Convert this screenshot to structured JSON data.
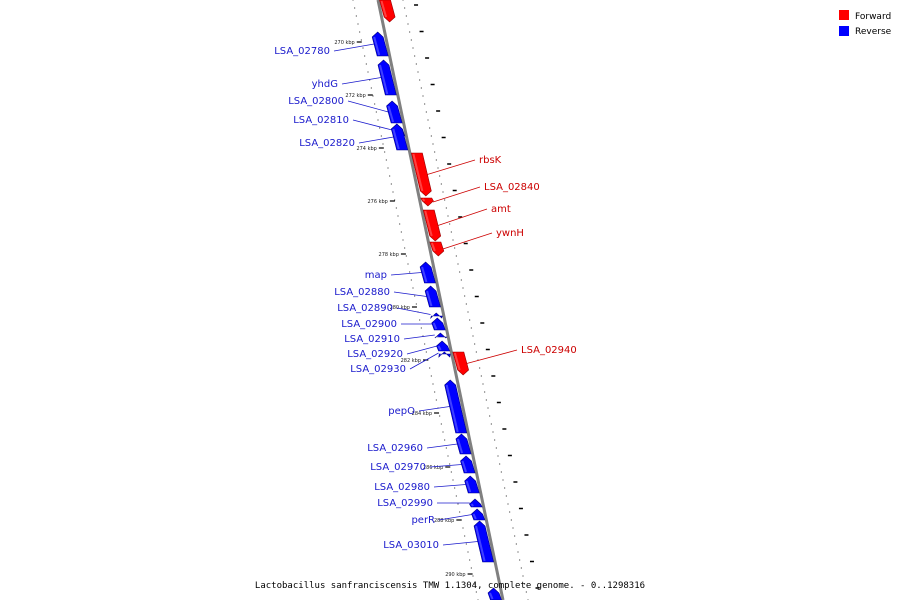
{
  "caption": "Lactobacillus sanfranciscensis TMW 1.1304, complete genome. - 0..1298316",
  "colors": {
    "forward": "#ff0000",
    "reverse": "#0000ff",
    "backbone": "#808080",
    "line_forward": "#cc0000",
    "line_reverse": "#1a1acc"
  },
  "legend": [
    {
      "label": "Forward",
      "color": "#ff0000"
    },
    {
      "label": "Reverse",
      "color": "#0000ff"
    }
  ],
  "ticks": [
    "270 kbp",
    "272 kbp",
    "274 kbp",
    "276 kbp",
    "278 kbp",
    "280 kbp",
    "282 kbp",
    "284 kbp",
    "286 kbp",
    "288 kbp",
    "290 kbp"
  ],
  "genes": [
    {
      "name": "LSA_02780",
      "strand": "reverse"
    },
    {
      "name": "yhdG",
      "strand": "reverse"
    },
    {
      "name": "LSA_02800",
      "strand": "reverse"
    },
    {
      "name": "LSA_02810",
      "strand": "reverse"
    },
    {
      "name": "LSA_02820",
      "strand": "reverse"
    },
    {
      "name": "rbsK",
      "strand": "forward"
    },
    {
      "name": "LSA_02840",
      "strand": "forward"
    },
    {
      "name": "amt",
      "strand": "forward"
    },
    {
      "name": "ywnH",
      "strand": "forward"
    },
    {
      "name": "map",
      "strand": "reverse"
    },
    {
      "name": "LSA_02880",
      "strand": "reverse"
    },
    {
      "name": "LSA_02890",
      "strand": "reverse"
    },
    {
      "name": "LSA_02900",
      "strand": "reverse"
    },
    {
      "name": "LSA_02910",
      "strand": "reverse"
    },
    {
      "name": "LSA_02920",
      "strand": "reverse"
    },
    {
      "name": "LSA_02930",
      "strand": "reverse"
    },
    {
      "name": "LSA_02940",
      "strand": "forward"
    },
    {
      "name": "pepO",
      "strand": "reverse"
    },
    {
      "name": "LSA_02960",
      "strand": "reverse"
    },
    {
      "name": "LSA_02970",
      "strand": "reverse"
    },
    {
      "name": "LSA_02980",
      "strand": "reverse"
    },
    {
      "name": "LSA_02990",
      "strand": "reverse"
    },
    {
      "name": "perR",
      "strand": "reverse"
    },
    {
      "name": "LSA_03010",
      "strand": "reverse"
    }
  ]
}
